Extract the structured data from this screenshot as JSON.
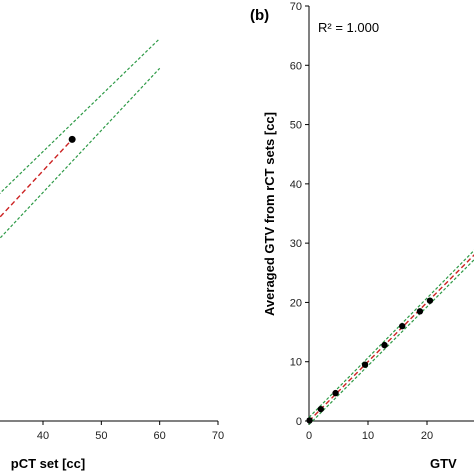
{
  "chart_data": [
    {
      "type": "scatter",
      "panel_label": "",
      "xlabel": "pCT set [cc]",
      "ylabel": "",
      "xlim": [
        0,
        70
      ],
      "ylim": [
        0,
        70
      ],
      "xticks": [
        40,
        50,
        60,
        70
      ],
      "points": [
        {
          "x": 45,
          "y": 47.5
        }
      ],
      "fit_line": {
        "x": [
          28,
          45
        ],
        "y": [
          29.5,
          47.5
        ],
        "color": "#cc2222",
        "style": "dashed"
      },
      "confidence_band": {
        "upper": {
          "x": [
            28,
            60
          ],
          "y": [
            34,
            64.5
          ]
        },
        "lower": {
          "x": [
            28,
            60
          ],
          "y": [
            26,
            59.5
          ]
        },
        "color": "#2e9a47",
        "style": "dotted"
      },
      "grid": false
    },
    {
      "type": "scatter",
      "panel_label": "(b)",
      "annotation": "R² = 1.000",
      "xlabel": "GTV",
      "ylabel": "Averaged GTV from rCT sets [cc]",
      "xlim": [
        0,
        30
      ],
      "ylim": [
        0,
        70
      ],
      "xticks": [
        0,
        10,
        20
      ],
      "yticks": [
        0,
        10,
        20,
        30,
        40,
        50,
        60,
        70
      ],
      "points": [
        {
          "x": 0.1,
          "y": 0.1
        },
        {
          "x": 2,
          "y": 2
        },
        {
          "x": 4.5,
          "y": 4.7
        },
        {
          "x": 9.5,
          "y": 9.5
        },
        {
          "x": 12.8,
          "y": 12.8
        },
        {
          "x": 15.8,
          "y": 16
        },
        {
          "x": 18.8,
          "y": 18.5
        },
        {
          "x": 20.5,
          "y": 20.3
        }
      ],
      "fit_line": {
        "x": [
          0,
          30
        ],
        "y": [
          0,
          30
        ],
        "color": "#cc2222",
        "style": "dashed"
      },
      "confidence_band": {
        "upper": {
          "x": [
            0,
            30
          ],
          "y": [
            0.6,
            30.8
          ]
        },
        "lower": {
          "x": [
            0,
            30
          ],
          "y": [
            -0.6,
            29.2
          ]
        },
        "color": "#2e9a47",
        "style": "dotted"
      },
      "grid": false
    }
  ]
}
